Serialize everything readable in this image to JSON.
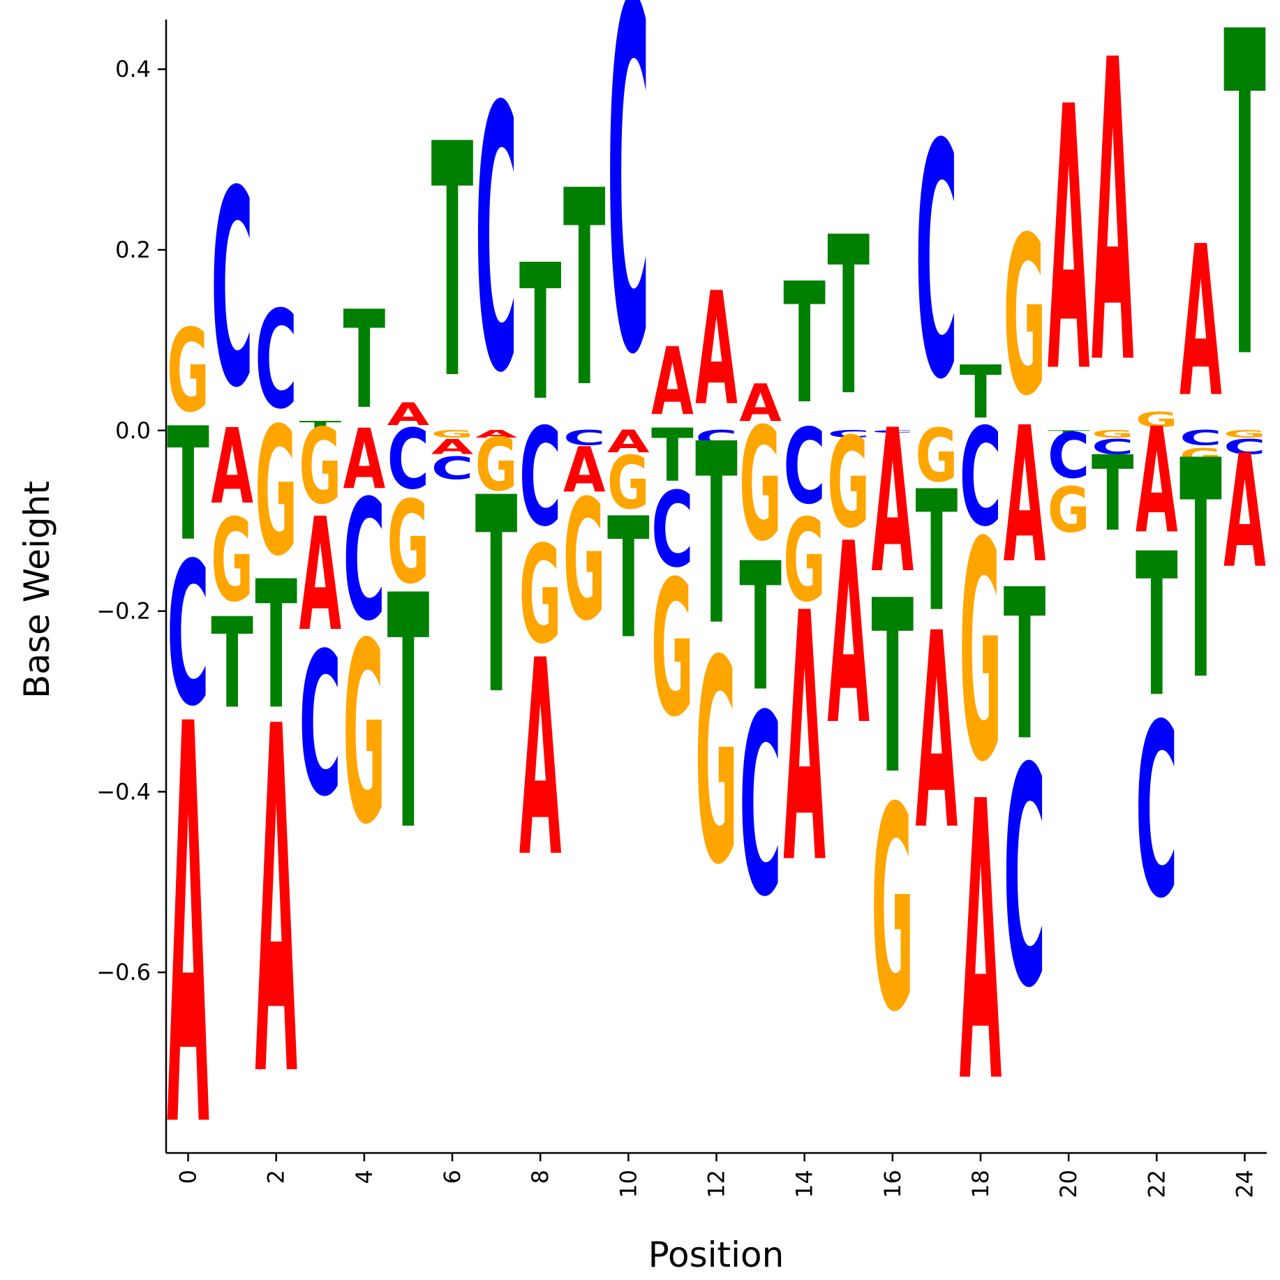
{
  "chart_data": {
    "type": "sequence-logo",
    "title": "",
    "xlabel": "Position",
    "ylabel": "Base Weight",
    "ylim": [
      -0.8,
      0.455
    ],
    "xlim": [
      -0.5,
      24.5
    ],
    "xticks": [
      0,
      2,
      4,
      6,
      8,
      10,
      12,
      14,
      16,
      18,
      20,
      22,
      24
    ],
    "yticks": [
      -0.6,
      -0.4,
      -0.2,
      0.0,
      0.2,
      0.4
    ],
    "ytick_labels": [
      "−0.6",
      "−0.4",
      "−0.2",
      "0.0",
      "0.2",
      "0.4"
    ],
    "xtick_labels": [
      "0",
      "2",
      "4",
      "6",
      "8",
      "10",
      "12",
      "14",
      "16",
      "18",
      "20",
      "22",
      "24"
    ],
    "grid": false,
    "colors": {
      "A": "#ff0000",
      "C": "#0000ff",
      "G": "#ffa500",
      "T": "#008000"
    },
    "positions": [
      {
        "pos": 0,
        "weights": {
          "A": -0.53,
          "C": -0.19,
          "G": 0.11,
          "T": -0.15
        }
      },
      {
        "pos": 1,
        "weights": {
          "A": -0.1,
          "C": 0.26,
          "G": -0.11,
          "T": -0.12
        }
      },
      {
        "pos": 2,
        "weights": {
          "A": -0.46,
          "C": 0.13,
          "G": -0.17,
          "T": -0.17
        }
      },
      {
        "pos": 3,
        "weights": {
          "A": -0.15,
          "C": -0.19,
          "G": -0.1,
          "T": 0.01
        }
      },
      {
        "pos": 4,
        "weights": {
          "A": -0.08,
          "C": -0.16,
          "G": -0.24,
          "T": 0.13
        }
      },
      {
        "pos": 5,
        "weights": {
          "A": 0.03,
          "C": -0.08,
          "G": -0.11,
          "T": -0.31
        }
      },
      {
        "pos": 6,
        "weights": {
          "A": -0.02,
          "C": -0.03,
          "G": -0.01,
          "T": 0.31
        }
      },
      {
        "pos": 7,
        "weights": {
          "A": -0.01,
          "C": 0.35,
          "G": -0.07,
          "T": -0.26
        }
      },
      {
        "pos": 8,
        "weights": {
          "A": -0.26,
          "C": -0.13,
          "G": -0.13,
          "T": 0.18
        }
      },
      {
        "pos": 9,
        "weights": {
          "A": -0.06,
          "C": -0.02,
          "G": -0.16,
          "T": 0.26
        }
      },
      {
        "pos": 10,
        "weights": {
          "A": -0.03,
          "C": 0.46,
          "G": -0.07,
          "T": -0.16
        }
      },
      {
        "pos": 11,
        "weights": {
          "A": 0.09,
          "C": -0.1,
          "G": -0.18,
          "T": -0.07
        }
      },
      {
        "pos": 12,
        "weights": {
          "A": 0.15,
          "C": -0.02,
          "G": -0.27,
          "T": -0.24
        }
      },
      {
        "pos": 13,
        "weights": {
          "A": 0.05,
          "C": -0.24,
          "G": -0.15,
          "T": -0.17
        }
      },
      {
        "pos": 14,
        "weights": {
          "A": -0.33,
          "C": -0.1,
          "G": -0.11,
          "T": 0.16
        }
      },
      {
        "pos": 15,
        "weights": {
          "A": -0.24,
          "C": -0.01,
          "G": -0.12,
          "T": 0.21
        }
      },
      {
        "pos": 16,
        "weights": {
          "A": -0.19,
          "C": -0.003,
          "G": -0.27,
          "T": -0.23
        }
      },
      {
        "pos": 17,
        "weights": {
          "A": -0.26,
          "C": 0.31,
          "G": -0.07,
          "T": -0.16
        }
      },
      {
        "pos": 18,
        "weights": {
          "A": -0.37,
          "C": -0.13,
          "G": -0.29,
          "T": 0.07
        }
      },
      {
        "pos": 19,
        "weights": {
          "A": -0.18,
          "C": -0.29,
          "G": 0.21,
          "T": -0.2
        }
      },
      {
        "pos": 20,
        "weights": {
          "A": 0.35,
          "C": -0.06,
          "G": -0.06,
          "T": -0.004
        }
      },
      {
        "pos": 21,
        "weights": {
          "A": 0.4,
          "C": -0.02,
          "G": -0.01,
          "T": -0.1
        }
      },
      {
        "pos": 22,
        "weights": {
          "A": -0.14,
          "C": -0.23,
          "G": 0.02,
          "T": -0.19
        }
      },
      {
        "pos": 23,
        "weights": {
          "A": 0.2,
          "C": -0.02,
          "G": -0.02,
          "T": -0.29
        }
      },
      {
        "pos": 24,
        "weights": {
          "A": -0.15,
          "C": -0.02,
          "G": -0.01,
          "T": 0.43
        }
      }
    ]
  }
}
